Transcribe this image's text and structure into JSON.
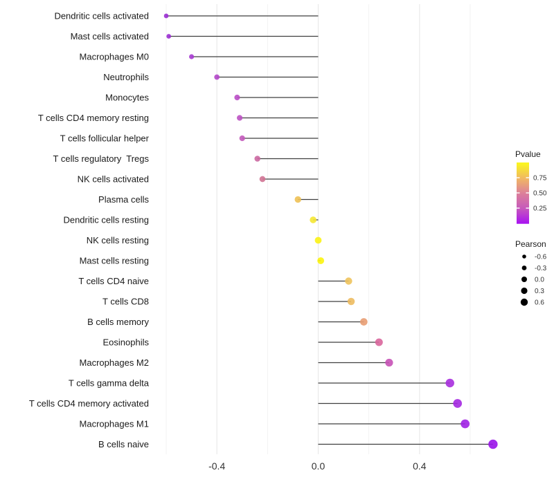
{
  "chart_data": {
    "type": "lollipop",
    "title": "",
    "xlabel": "",
    "ylabel": "",
    "xlim": [
      -0.655,
      0.762
    ],
    "baseline": 0,
    "grid": "vertical-only",
    "x_ticks": {
      "values": [
        -0.4,
        0.0,
        0.4
      ],
      "labels": [
        "-0.4",
        "0.0",
        "0.4"
      ]
    },
    "x_minor_gridlines": [
      -0.6,
      -0.2,
      0.2,
      0.6
    ],
    "categories": [
      "Dendritic cells activated",
      "Mast cells activated",
      "Macrophages M0",
      "Neutrophils",
      "Monocytes",
      "T cells CD4 memory resting",
      "T cells follicular helper",
      "T cells regulatory  Tregs",
      "NK cells activated",
      "Plasma cells",
      "Dendritic cells resting",
      "NK cells resting",
      "Mast cells resting",
      "T cells CD4 naive",
      "T cells CD8",
      "B cells memory",
      "Eosinophils",
      "Macrophages M2",
      "T cells gamma delta",
      "T cells CD4 memory activated",
      "Macrophages M1",
      "B cells naive"
    ],
    "series": [
      {
        "name": "Pearson",
        "values": [
          -0.6,
          -0.59,
          -0.5,
          -0.4,
          -0.32,
          -0.31,
          -0.3,
          -0.24,
          -0.22,
          -0.08,
          -0.02,
          0.0,
          0.01,
          0.12,
          0.13,
          0.18,
          0.24,
          0.28,
          0.52,
          0.55,
          0.58,
          0.69
        ],
        "point_colors": [
          "#9b2fd3",
          "#9b2fd3",
          "#a73bd1",
          "#b247c9",
          "#ba4ec6",
          "#bd52c3",
          "#c35abb",
          "#cb68a1",
          "#d07394",
          "#eec155",
          "#f5e733",
          "#fbf215",
          "#fcf40d",
          "#eec35c",
          "#edbb60",
          "#e89d73",
          "#d9669c",
          "#c751b6",
          "#a72ede",
          "#a428e1",
          "#a021e4",
          "#9913e9"
        ]
      }
    ],
    "legend_pvalue": {
      "title": "Pvalue",
      "tick_labels": [
        "0.75",
        "0.50",
        "0.25"
      ],
      "tick_values": [
        0.75,
        0.5,
        0.25
      ],
      "range": [
        0,
        1
      ],
      "gradient_bottom_to_top": [
        "#a915f0",
        "#c75abb",
        "#dc7f9b",
        "#f0b763",
        "#faf521"
      ]
    },
    "legend_pearson": {
      "title": "Pearson",
      "entries": [
        {
          "label": "-0.6",
          "value": -0.6
        },
        {
          "label": "-0.3",
          "value": -0.3
        },
        {
          "label": "0.0",
          "value": 0.0
        },
        {
          "label": "0.3",
          "value": 0.3
        },
        {
          "label": "0.6",
          "value": 0.6
        }
      ],
      "dot_color": "#000000"
    },
    "style": {
      "segment_color": "#3f3f3f",
      "gridline_major_color": "#e8e8e8",
      "gridline_minor_color": "#f0f0f0",
      "background": "#ffffff"
    }
  }
}
